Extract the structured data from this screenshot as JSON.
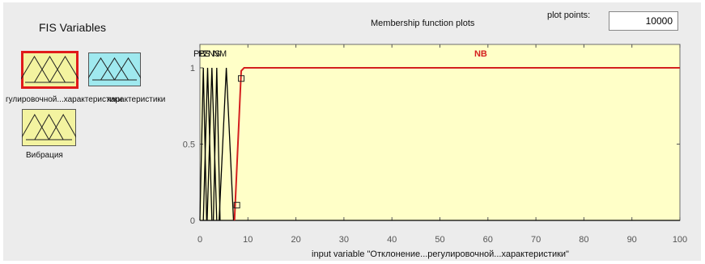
{
  "fis_panel": {
    "title": "FIS Variables",
    "variables": [
      {
        "label": "гулировочной...характеристики",
        "color": "#f3f3a0",
        "selected": true,
        "kind": "input",
        "icon": "membership-triangles-icon"
      },
      {
        "label": "характеристики",
        "color": "#9fe9ef",
        "selected": false,
        "kind": "output",
        "icon": "membership-triangles-icon"
      },
      {
        "label": "Вибрация",
        "color": "#f3f3a0",
        "selected": false,
        "kind": "input",
        "icon": "membership-triangles-icon"
      }
    ],
    "selected_border_color": "#e01b1b"
  },
  "plot_header": {
    "title": "Membership function plots",
    "plot_points_label": "plot points:",
    "plot_points_value": "10000"
  },
  "chart_data": {
    "type": "line",
    "title": "Membership function plots",
    "xlabel": "input variable \"Отклонение...регулировочной...характеристики\"",
    "ylabel": "",
    "xlim": [
      0,
      100
    ],
    "ylim": [
      0,
      1
    ],
    "xticks": [
      0,
      10,
      20,
      30,
      40,
      50,
      60,
      70,
      80,
      90,
      100
    ],
    "yticks": [
      0,
      0.5,
      1
    ],
    "background": "#ffffc8",
    "grid": false,
    "legend": "none",
    "top_labels": [
      "PB",
      "PS",
      "Z",
      "NS",
      "NM"
    ],
    "series": [
      {
        "name": "PB",
        "color": "#000000",
        "x": [
          0,
          0.7,
          1.4
        ],
        "y": [
          0,
          1,
          0
        ]
      },
      {
        "name": "PS",
        "color": "#000000",
        "x": [
          0.7,
          1.6,
          2.5
        ],
        "y": [
          0,
          1,
          0
        ]
      },
      {
        "name": "Z",
        "color": "#000000",
        "x": [
          1.5,
          2.5,
          3.5
        ],
        "y": [
          0,
          1,
          0
        ]
      },
      {
        "name": "NS",
        "color": "#000000",
        "x": [
          2.8,
          3.5,
          4.2
        ],
        "y": [
          0,
          1,
          0
        ]
      },
      {
        "name": "NM",
        "color": "#000000",
        "x": [
          4.0,
          5.5,
          7.0
        ],
        "y": [
          0,
          1,
          0
        ]
      },
      {
        "name": "NB",
        "color": "#d41f1f",
        "x": [
          7.2,
          8.6,
          9.2,
          100
        ],
        "y": [
          0,
          0.98,
          1,
          1
        ],
        "highlighted": true
      }
    ],
    "handles": [
      {
        "x": 7.7,
        "y": 0.1
      },
      {
        "x": 8.6,
        "y": 0.93
      }
    ],
    "selected_label": "NB",
    "selected_label_x": 58.5
  }
}
